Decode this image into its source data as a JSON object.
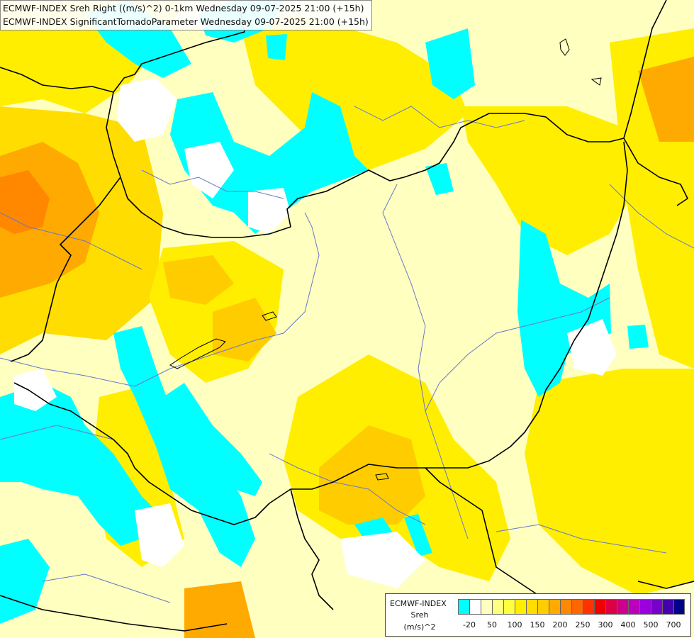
{
  "titles": [
    "ECMWF-INDEX Sreh Right ((m/s)^2) 0-1km Wednesday 09-07-2025 21:00 (+15h)",
    "ECMWF-INDEX SignificantTornadoParameter Wednesday 09-07-2025 21:00 (+15h)"
  ],
  "legend": {
    "model": "ECMWF-INDEX",
    "parameter": "Sreh",
    "unit": "(m/s)^2",
    "colors": [
      "#00ffff",
      "#ffffff",
      "#ffffc0",
      "#ffff80",
      "#ffff40",
      "#ffee00",
      "#ffdd00",
      "#ffcc00",
      "#ffaa00",
      "#ff8800",
      "#ff6600",
      "#ff3300",
      "#ee0000",
      "#dd0044",
      "#cc0088",
      "#bb00bb",
      "#9900dd",
      "#7700cc",
      "#4400aa",
      "#000088"
    ],
    "ticks": [
      {
        "label": "-20",
        "index": 1
      },
      {
        "label": "50",
        "index": 3
      },
      {
        "label": "100",
        "index": 5
      },
      {
        "label": "150",
        "index": 7
      },
      {
        "label": "200",
        "index": 9
      },
      {
        "label": "250",
        "index": 11
      },
      {
        "label": "300",
        "index": 13
      },
      {
        "label": "400",
        "index": 15
      },
      {
        "label": "500",
        "index": 17
      },
      {
        "label": "700",
        "index": 19
      }
    ]
  }
}
